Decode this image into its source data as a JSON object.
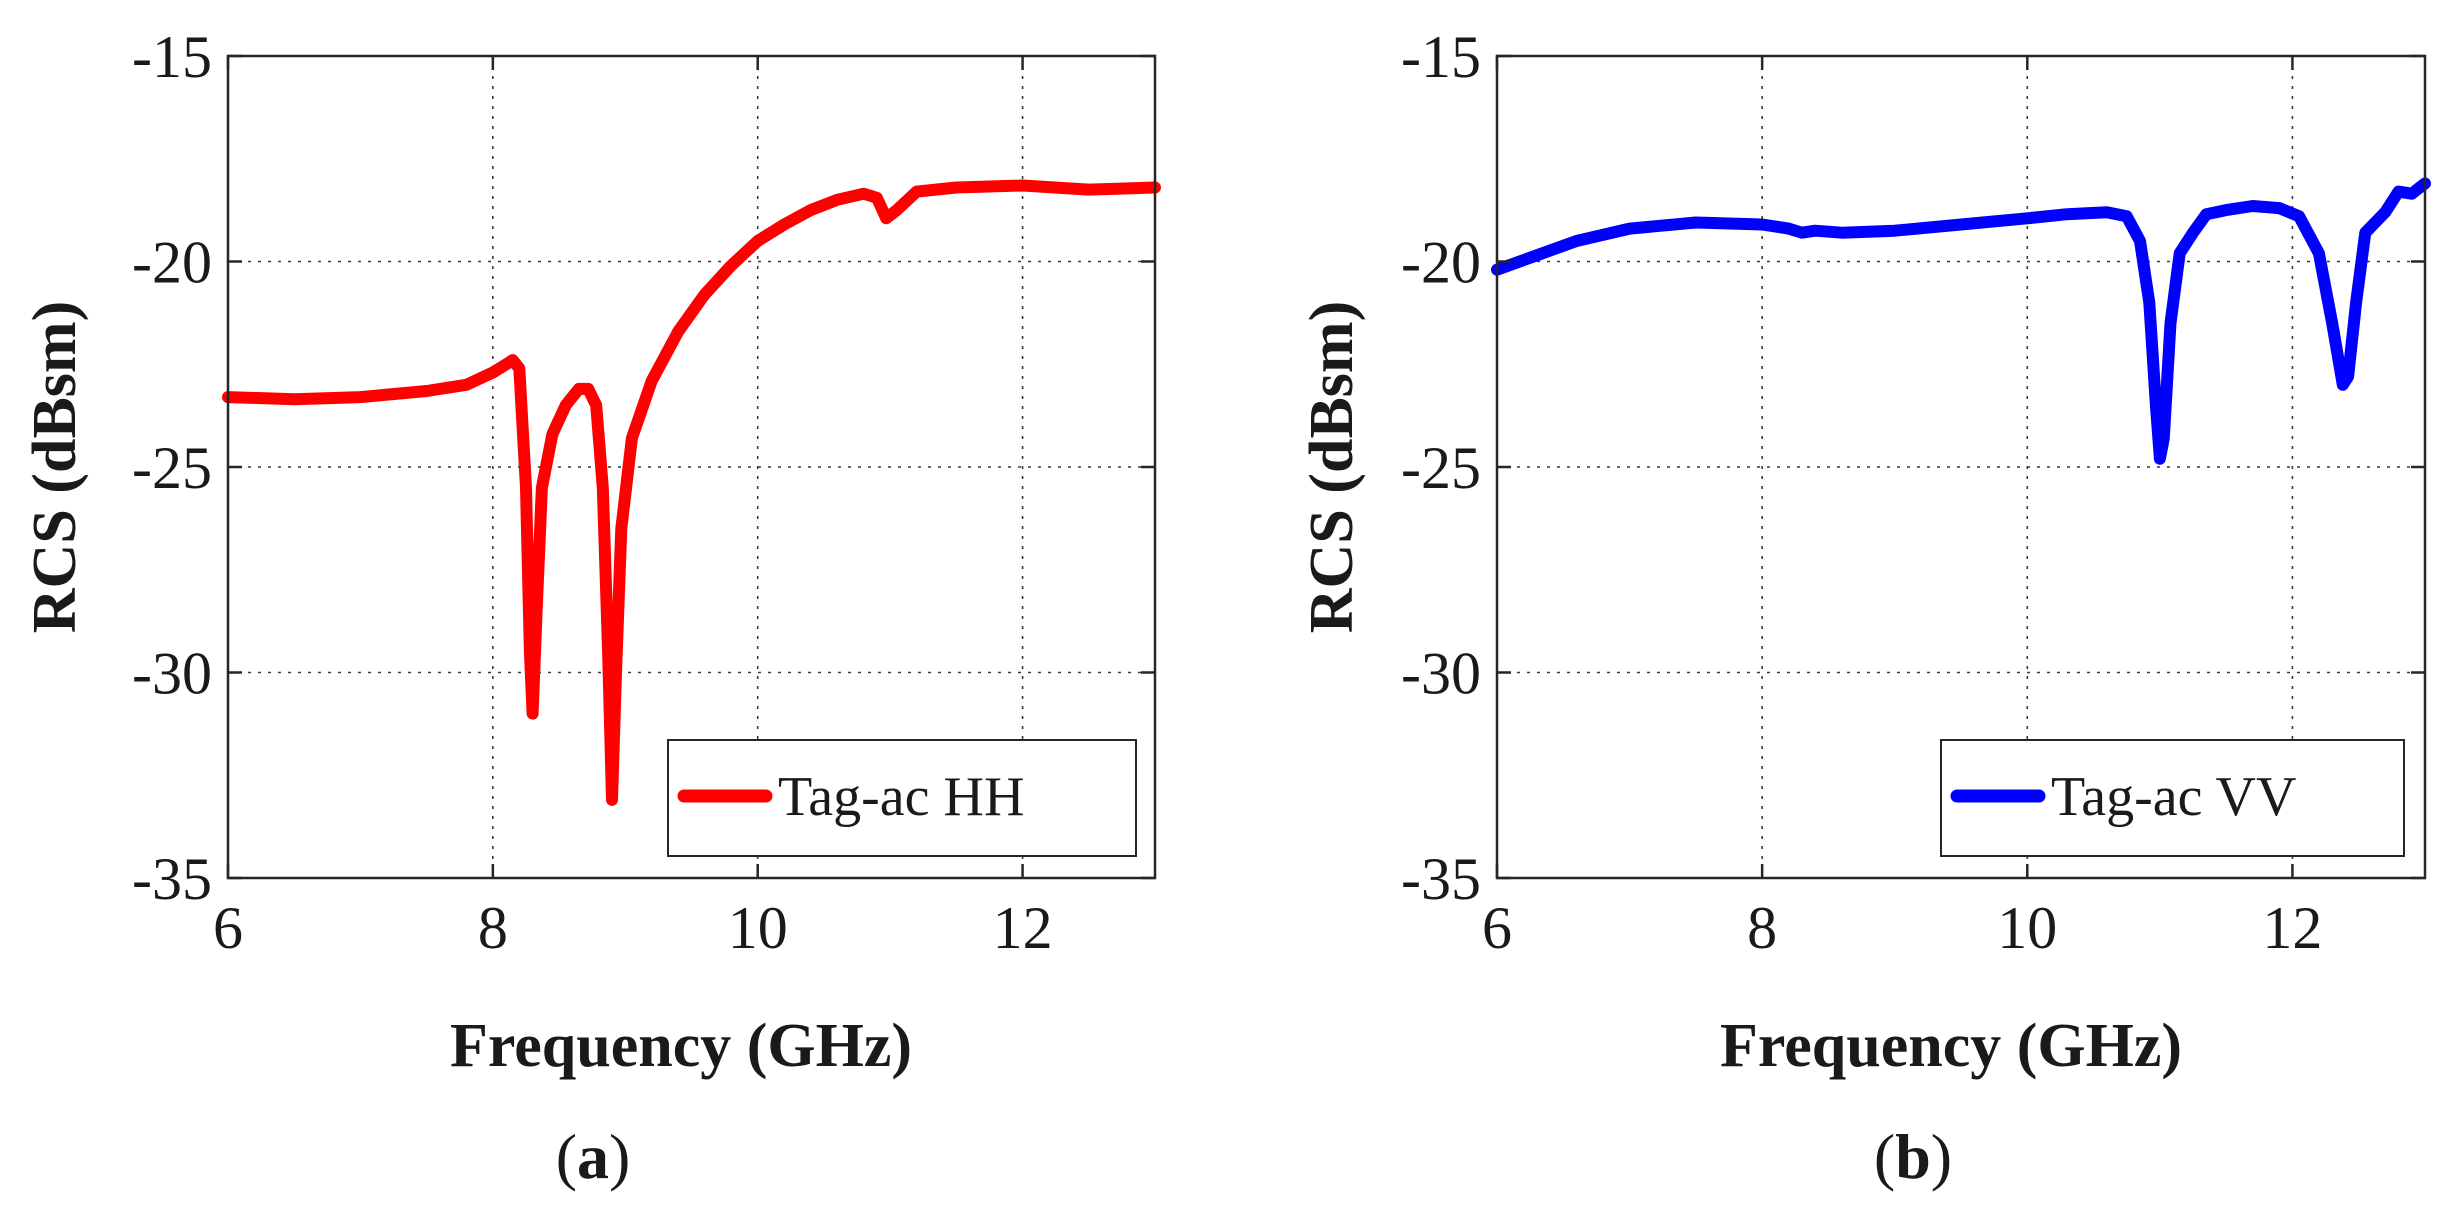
{
  "figure": {
    "panel_a_caption_open": "(",
    "panel_a_caption_letter": "a",
    "panel_a_caption_close": ")",
    "panel_b_caption_open": "(",
    "panel_b_caption_letter": "b",
    "panel_b_caption_close": ")"
  },
  "chart_data": [
    {
      "type": "line",
      "panel": "a",
      "xlabel": "Frequency (GHz)",
      "ylabel": "RCS (dBsm)",
      "xlim": [
        6,
        13
      ],
      "ylim": [
        -35,
        -15
      ],
      "xticks": [
        6,
        8,
        10,
        12
      ],
      "yticks": [
        -15,
        -20,
        -25,
        -30,
        -35
      ],
      "grid": true,
      "legend_position": "bottom-right",
      "series": [
        {
          "name": "Tag-ac HH",
          "color": "#ff0000",
          "points": [
            [
              6.0,
              -23.3
            ],
            [
              6.5,
              -23.35
            ],
            [
              7.0,
              -23.3
            ],
            [
              7.5,
              -23.15
            ],
            [
              7.8,
              -23.0
            ],
            [
              8.0,
              -22.7
            ],
            [
              8.1,
              -22.5
            ],
            [
              8.15,
              -22.4
            ],
            [
              8.2,
              -22.6
            ],
            [
              8.25,
              -25.5
            ],
            [
              8.28,
              -29.5
            ],
            [
              8.3,
              -31.0
            ],
            [
              8.33,
              -28.5
            ],
            [
              8.37,
              -25.5
            ],
            [
              8.45,
              -24.2
            ],
            [
              8.55,
              -23.5
            ],
            [
              8.65,
              -23.1
            ],
            [
              8.72,
              -23.1
            ],
            [
              8.78,
              -23.5
            ],
            [
              8.83,
              -25.5
            ],
            [
              8.87,
              -29.5
            ],
            [
              8.9,
              -33.1
            ],
            [
              8.93,
              -30.0
            ],
            [
              8.97,
              -26.5
            ],
            [
              9.05,
              -24.3
            ],
            [
              9.2,
              -22.9
            ],
            [
              9.4,
              -21.7
            ],
            [
              9.6,
              -20.8
            ],
            [
              9.8,
              -20.1
            ],
            [
              10.0,
              -19.5
            ],
            [
              10.2,
              -19.1
            ],
            [
              10.4,
              -18.75
            ],
            [
              10.6,
              -18.5
            ],
            [
              10.8,
              -18.35
            ],
            [
              10.9,
              -18.45
            ],
            [
              10.97,
              -18.95
            ],
            [
              11.05,
              -18.75
            ],
            [
              11.2,
              -18.3
            ],
            [
              11.5,
              -18.2
            ],
            [
              12.0,
              -18.15
            ],
            [
              12.5,
              -18.25
            ],
            [
              13.0,
              -18.2
            ]
          ]
        }
      ]
    },
    {
      "type": "line",
      "panel": "b",
      "xlabel": "Frequency (GHz)",
      "ylabel": "RCS (dBsm)",
      "xlim": [
        6,
        13
      ],
      "ylim": [
        -35,
        -15
      ],
      "xticks": [
        6,
        8,
        10,
        12
      ],
      "yticks": [
        -15,
        -20,
        -25,
        -30,
        -35
      ],
      "grid": true,
      "legend_position": "bottom-right",
      "series": [
        {
          "name": "Tag-ac VV",
          "color": "#0000ff",
          "points": [
            [
              6.0,
              -20.2
            ],
            [
              6.3,
              -19.85
            ],
            [
              6.6,
              -19.5
            ],
            [
              7.0,
              -19.2
            ],
            [
              7.5,
              -19.05
            ],
            [
              8.0,
              -19.1
            ],
            [
              8.2,
              -19.2
            ],
            [
              8.3,
              -19.3
            ],
            [
              8.4,
              -19.25
            ],
            [
              8.6,
              -19.3
            ],
            [
              9.0,
              -19.25
            ],
            [
              9.5,
              -19.1
            ],
            [
              10.0,
              -18.95
            ],
            [
              10.3,
              -18.85
            ],
            [
              10.6,
              -18.8
            ],
            [
              10.75,
              -18.9
            ],
            [
              10.85,
              -19.5
            ],
            [
              10.92,
              -21.0
            ],
            [
              10.97,
              -23.5
            ],
            [
              11.0,
              -24.8
            ],
            [
              11.03,
              -24.3
            ],
            [
              11.08,
              -21.5
            ],
            [
              11.15,
              -19.8
            ],
            [
              11.25,
              -19.3
            ],
            [
              11.35,
              -18.85
            ],
            [
              11.5,
              -18.75
            ],
            [
              11.7,
              -18.65
            ],
            [
              11.9,
              -18.7
            ],
            [
              12.05,
              -18.9
            ],
            [
              12.2,
              -19.8
            ],
            [
              12.3,
              -21.5
            ],
            [
              12.38,
              -23.0
            ],
            [
              12.42,
              -22.8
            ],
            [
              12.48,
              -21.0
            ],
            [
              12.55,
              -19.3
            ],
            [
              12.7,
              -18.8
            ],
            [
              12.8,
              -18.3
            ],
            [
              12.9,
              -18.35
            ],
            [
              13.0,
              -18.1
            ]
          ]
        }
      ]
    }
  ]
}
